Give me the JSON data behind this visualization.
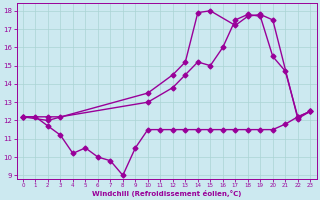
{
  "xlabel": "Windchill (Refroidissement éolien,°C)",
  "background_color": "#cce9f0",
  "line_color": "#990099",
  "grid_color": "#aad4d4",
  "xlim": [
    -0.5,
    23.5
  ],
  "ylim": [
    8.8,
    18.4
  ],
  "yticks": [
    9,
    10,
    11,
    12,
    13,
    14,
    15,
    16,
    17,
    18
  ],
  "xticks": [
    0,
    1,
    2,
    3,
    4,
    5,
    6,
    7,
    8,
    9,
    10,
    11,
    12,
    13,
    14,
    15,
    16,
    17,
    18,
    19,
    20,
    21,
    22,
    23
  ],
  "series1_x": [
    0,
    1,
    2,
    3,
    4,
    5,
    6,
    7,
    8,
    9,
    10,
    11,
    12,
    13,
    14,
    15,
    16,
    17,
    18,
    19,
    20,
    21,
    22,
    23
  ],
  "series1_y": [
    12.2,
    12.2,
    11.7,
    11.2,
    10.2,
    10.5,
    10.0,
    9.8,
    9.0,
    10.5,
    11.5,
    11.5,
    11.5,
    11.5,
    11.5,
    11.5,
    11.5,
    11.5,
    11.5,
    11.5,
    11.5,
    11.8,
    12.2,
    12.5
  ],
  "series2_x": [
    0,
    2,
    3,
    10,
    12,
    13,
    14,
    15,
    16,
    17,
    18,
    19,
    20,
    21,
    22,
    23
  ],
  "series2_y": [
    12.2,
    12.2,
    12.2,
    13.0,
    13.8,
    14.5,
    15.2,
    15.0,
    16.0,
    17.5,
    17.8,
    17.7,
    15.5,
    14.7,
    12.2,
    12.5
  ],
  "series3_x": [
    0,
    2,
    10,
    12,
    13,
    14,
    15,
    17,
    18,
    19,
    20,
    22,
    23
  ],
  "series3_y": [
    12.2,
    12.0,
    13.5,
    14.5,
    15.2,
    17.9,
    18.0,
    17.2,
    17.7,
    17.8,
    17.5,
    12.1,
    12.5
  ],
  "marker": "D",
  "markersize": 2.5,
  "linewidth": 1.0
}
